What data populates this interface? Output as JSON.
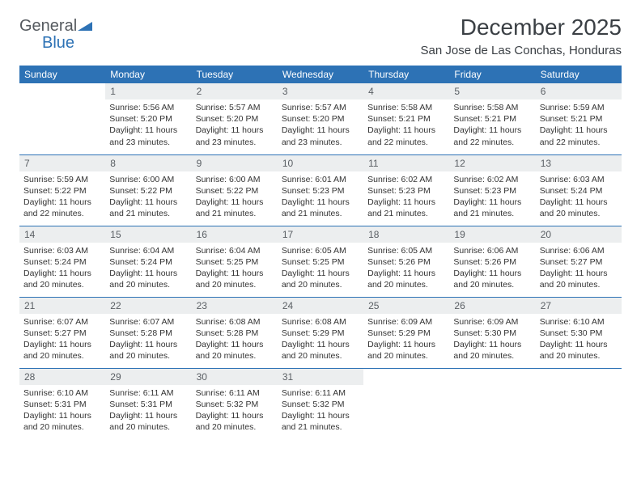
{
  "logo": {
    "text1": "General",
    "text2": "Blue"
  },
  "title": "December 2025",
  "location": "San Jose de Las Conchas, Honduras",
  "colors": {
    "brand_blue": "#2d72b5",
    "daynum_bg": "#eceeef",
    "text": "#333333",
    "header_text": "#3a3f44"
  },
  "day_headers": [
    "Sunday",
    "Monday",
    "Tuesday",
    "Wednesday",
    "Thursday",
    "Friday",
    "Saturday"
  ],
  "weeks": [
    [
      null,
      {
        "n": "1",
        "sr": "Sunrise: 5:56 AM",
        "ss": "Sunset: 5:20 PM",
        "dl": "Daylight: 11 hours and 23 minutes."
      },
      {
        "n": "2",
        "sr": "Sunrise: 5:57 AM",
        "ss": "Sunset: 5:20 PM",
        "dl": "Daylight: 11 hours and 23 minutes."
      },
      {
        "n": "3",
        "sr": "Sunrise: 5:57 AM",
        "ss": "Sunset: 5:20 PM",
        "dl": "Daylight: 11 hours and 23 minutes."
      },
      {
        "n": "4",
        "sr": "Sunrise: 5:58 AM",
        "ss": "Sunset: 5:21 PM",
        "dl": "Daylight: 11 hours and 22 minutes."
      },
      {
        "n": "5",
        "sr": "Sunrise: 5:58 AM",
        "ss": "Sunset: 5:21 PM",
        "dl": "Daylight: 11 hours and 22 minutes."
      },
      {
        "n": "6",
        "sr": "Sunrise: 5:59 AM",
        "ss": "Sunset: 5:21 PM",
        "dl": "Daylight: 11 hours and 22 minutes."
      }
    ],
    [
      {
        "n": "7",
        "sr": "Sunrise: 5:59 AM",
        "ss": "Sunset: 5:22 PM",
        "dl": "Daylight: 11 hours and 22 minutes."
      },
      {
        "n": "8",
        "sr": "Sunrise: 6:00 AM",
        "ss": "Sunset: 5:22 PM",
        "dl": "Daylight: 11 hours and 21 minutes."
      },
      {
        "n": "9",
        "sr": "Sunrise: 6:00 AM",
        "ss": "Sunset: 5:22 PM",
        "dl": "Daylight: 11 hours and 21 minutes."
      },
      {
        "n": "10",
        "sr": "Sunrise: 6:01 AM",
        "ss": "Sunset: 5:23 PM",
        "dl": "Daylight: 11 hours and 21 minutes."
      },
      {
        "n": "11",
        "sr": "Sunrise: 6:02 AM",
        "ss": "Sunset: 5:23 PM",
        "dl": "Daylight: 11 hours and 21 minutes."
      },
      {
        "n": "12",
        "sr": "Sunrise: 6:02 AM",
        "ss": "Sunset: 5:23 PM",
        "dl": "Daylight: 11 hours and 21 minutes."
      },
      {
        "n": "13",
        "sr": "Sunrise: 6:03 AM",
        "ss": "Sunset: 5:24 PM",
        "dl": "Daylight: 11 hours and 20 minutes."
      }
    ],
    [
      {
        "n": "14",
        "sr": "Sunrise: 6:03 AM",
        "ss": "Sunset: 5:24 PM",
        "dl": "Daylight: 11 hours and 20 minutes."
      },
      {
        "n": "15",
        "sr": "Sunrise: 6:04 AM",
        "ss": "Sunset: 5:24 PM",
        "dl": "Daylight: 11 hours and 20 minutes."
      },
      {
        "n": "16",
        "sr": "Sunrise: 6:04 AM",
        "ss": "Sunset: 5:25 PM",
        "dl": "Daylight: 11 hours and 20 minutes."
      },
      {
        "n": "17",
        "sr": "Sunrise: 6:05 AM",
        "ss": "Sunset: 5:25 PM",
        "dl": "Daylight: 11 hours and 20 minutes."
      },
      {
        "n": "18",
        "sr": "Sunrise: 6:05 AM",
        "ss": "Sunset: 5:26 PM",
        "dl": "Daylight: 11 hours and 20 minutes."
      },
      {
        "n": "19",
        "sr": "Sunrise: 6:06 AM",
        "ss": "Sunset: 5:26 PM",
        "dl": "Daylight: 11 hours and 20 minutes."
      },
      {
        "n": "20",
        "sr": "Sunrise: 6:06 AM",
        "ss": "Sunset: 5:27 PM",
        "dl": "Daylight: 11 hours and 20 minutes."
      }
    ],
    [
      {
        "n": "21",
        "sr": "Sunrise: 6:07 AM",
        "ss": "Sunset: 5:27 PM",
        "dl": "Daylight: 11 hours and 20 minutes."
      },
      {
        "n": "22",
        "sr": "Sunrise: 6:07 AM",
        "ss": "Sunset: 5:28 PM",
        "dl": "Daylight: 11 hours and 20 minutes."
      },
      {
        "n": "23",
        "sr": "Sunrise: 6:08 AM",
        "ss": "Sunset: 5:28 PM",
        "dl": "Daylight: 11 hours and 20 minutes."
      },
      {
        "n": "24",
        "sr": "Sunrise: 6:08 AM",
        "ss": "Sunset: 5:29 PM",
        "dl": "Daylight: 11 hours and 20 minutes."
      },
      {
        "n": "25",
        "sr": "Sunrise: 6:09 AM",
        "ss": "Sunset: 5:29 PM",
        "dl": "Daylight: 11 hours and 20 minutes."
      },
      {
        "n": "26",
        "sr": "Sunrise: 6:09 AM",
        "ss": "Sunset: 5:30 PM",
        "dl": "Daylight: 11 hours and 20 minutes."
      },
      {
        "n": "27",
        "sr": "Sunrise: 6:10 AM",
        "ss": "Sunset: 5:30 PM",
        "dl": "Daylight: 11 hours and 20 minutes."
      }
    ],
    [
      {
        "n": "28",
        "sr": "Sunrise: 6:10 AM",
        "ss": "Sunset: 5:31 PM",
        "dl": "Daylight: 11 hours and 20 minutes."
      },
      {
        "n": "29",
        "sr": "Sunrise: 6:11 AM",
        "ss": "Sunset: 5:31 PM",
        "dl": "Daylight: 11 hours and 20 minutes."
      },
      {
        "n": "30",
        "sr": "Sunrise: 6:11 AM",
        "ss": "Sunset: 5:32 PM",
        "dl": "Daylight: 11 hours and 20 minutes."
      },
      {
        "n": "31",
        "sr": "Sunrise: 6:11 AM",
        "ss": "Sunset: 5:32 PM",
        "dl": "Daylight: 11 hours and 21 minutes."
      },
      null,
      null,
      null
    ]
  ]
}
